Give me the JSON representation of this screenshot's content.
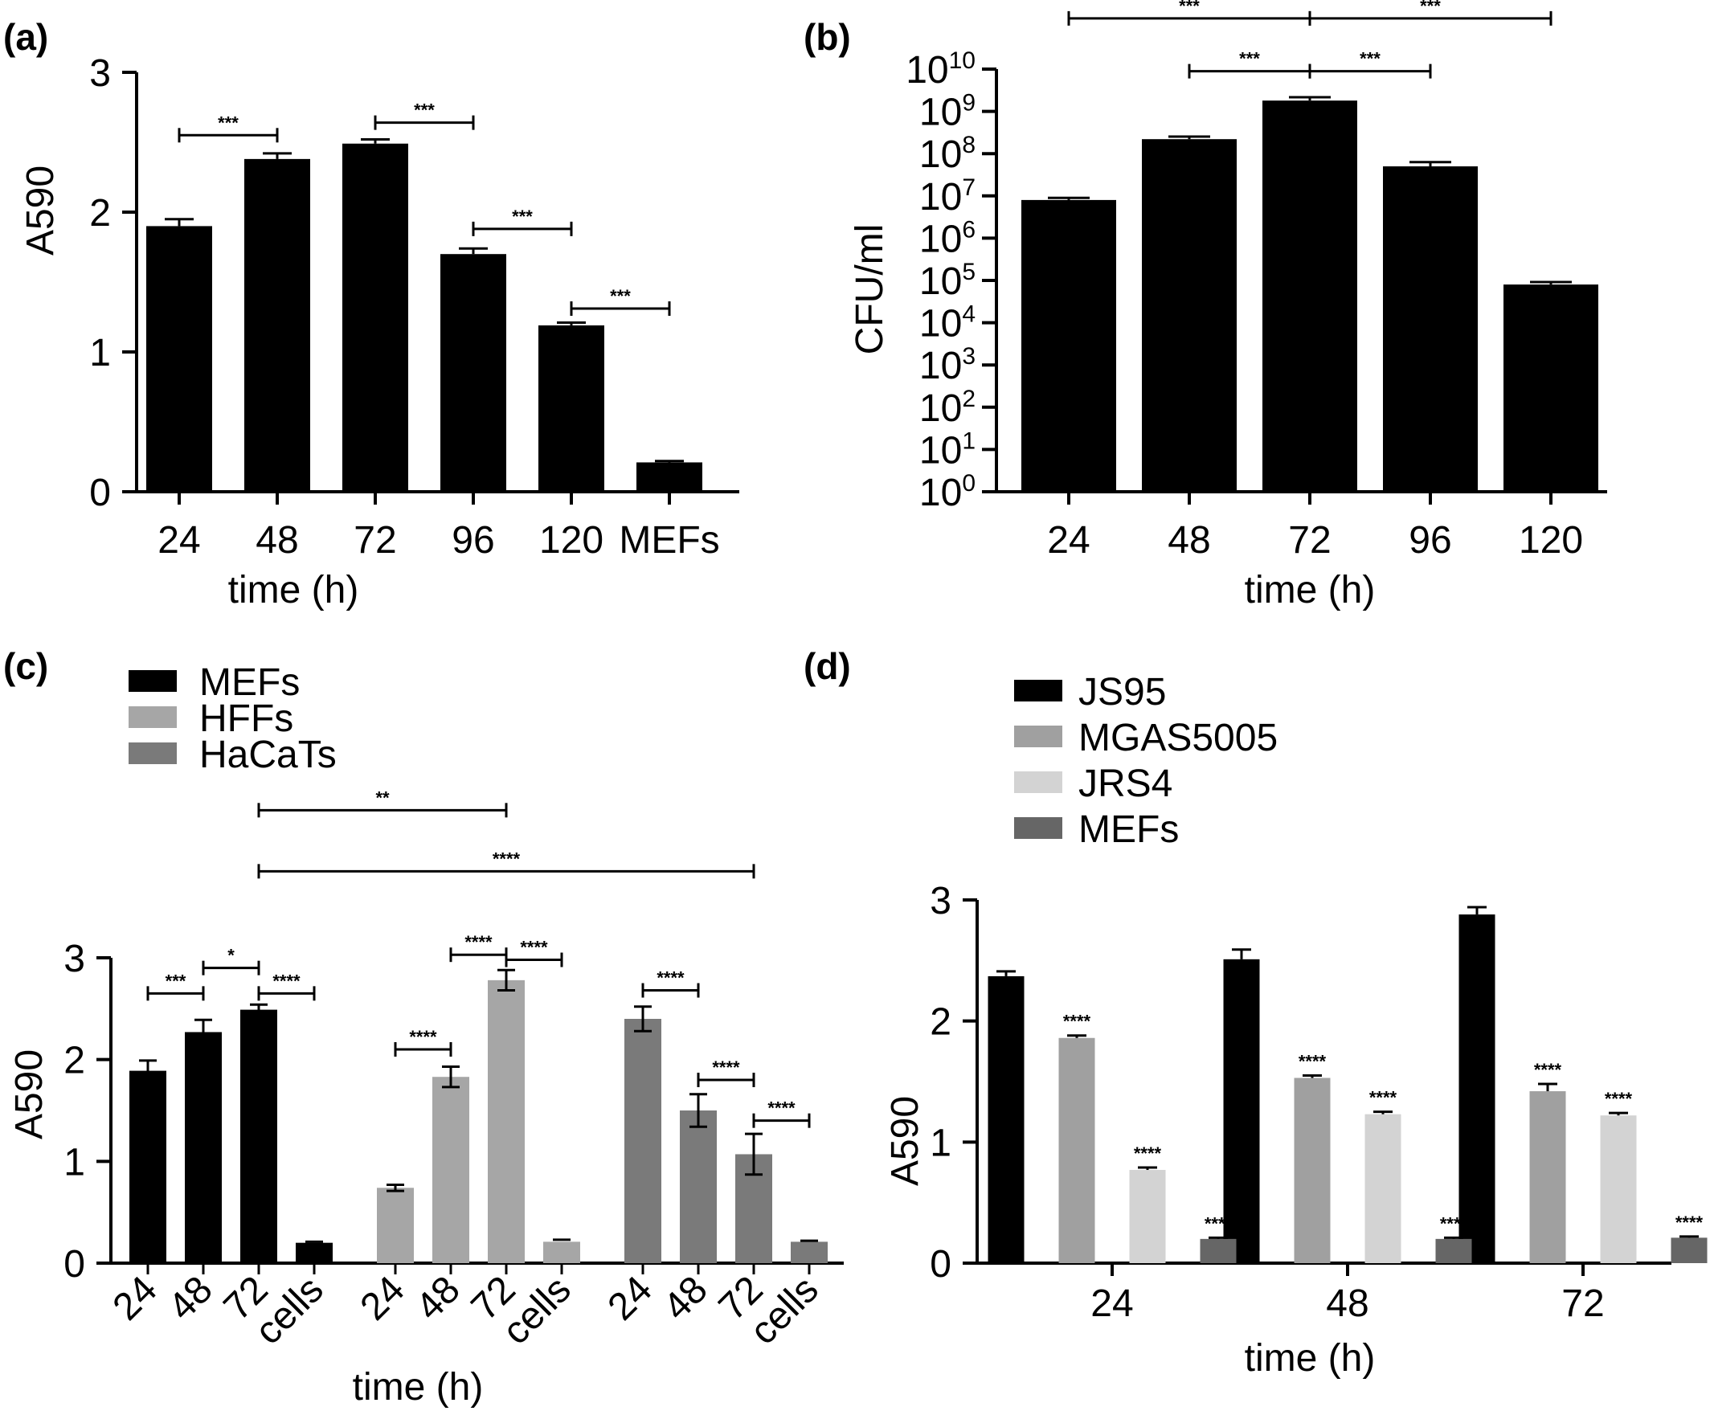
{
  "chart_data": [
    {
      "panel": "(a)",
      "type": "bar",
      "categories": [
        "24",
        "48",
        "72",
        "96",
        "120",
        "MEFs"
      ],
      "values": [
        1.9,
        2.38,
        2.49,
        1.7,
        1.19,
        0.21
      ],
      "errors": [
        0.05,
        0.04,
        0.03,
        0.04,
        0.02,
        0.01
      ],
      "xlabel": "time (h)",
      "ylabel": "A590",
      "ylim": [
        0,
        3
      ],
      "yticks": [
        0,
        1,
        2,
        3
      ],
      "color": "#000000",
      "significance": [
        {
          "from": 0,
          "to": 1,
          "label": "***",
          "y": 2.55
        },
        {
          "from": 2,
          "to": 3,
          "label": "***",
          "y": 2.64
        },
        {
          "from": 3,
          "to": 4,
          "label": "***",
          "y": 1.88
        },
        {
          "from": 4,
          "to": 5,
          "label": "***",
          "y": 1.31
        }
      ]
    },
    {
      "panel": "(b)",
      "type": "bar",
      "scale": "log",
      "categories": [
        "24",
        "48",
        "72",
        "96",
        "120"
      ],
      "values": [
        8000000,
        220000000,
        1800000000,
        50000000,
        80000
      ],
      "errors_log10": [
        0.05,
        0.06,
        0.08,
        0.1,
        0.06
      ],
      "xlabel": "time (h)",
      "ylabel": "CFU/ml",
      "ylim_log10": [
        0,
        10
      ],
      "ytick_base": "10",
      "ytick_exponents": [
        "0",
        "1",
        "2",
        "3",
        "4",
        "5",
        "6",
        "7",
        "8",
        "9",
        "10"
      ],
      "color": "#000000",
      "significance": [
        {
          "from": 0,
          "to": 2,
          "label": "***",
          "y_log10": 11.2
        },
        {
          "from": 2,
          "to": 4,
          "label": "***",
          "y_log10": 11.2
        },
        {
          "from": 1,
          "to": 2,
          "label": "***",
          "y_log10": 9.95
        },
        {
          "from": 2,
          "to": 3,
          "label": "***",
          "y_log10": 9.95
        }
      ]
    },
    {
      "panel": "(c)",
      "type": "bar",
      "categories": [
        "24",
        "48",
        "72",
        "cells"
      ],
      "series": [
        {
          "name": "MEFs",
          "color": "#000000",
          "values": [
            1.89,
            2.27,
            2.49,
            0.2
          ],
          "errors": [
            0.1,
            0.12,
            0.05,
            0.01
          ]
        },
        {
          "name": "HFFs",
          "color": "#a6a6a6",
          "values": [
            0.74,
            1.83,
            2.78,
            0.21
          ],
          "errors": [
            0.03,
            0.1,
            0.1,
            0.02
          ]
        },
        {
          "name": "HaCaTs",
          "color": "#7a7a7a",
          "values": [
            2.4,
            1.5,
            1.07,
            0.21
          ],
          "errors": [
            0.12,
            0.16,
            0.2,
            0.01
          ]
        }
      ],
      "xlabel": "time (h)",
      "ylabel": "A590",
      "ylim": [
        0,
        3
      ],
      "yticks": [
        0,
        1,
        2,
        3
      ],
      "significance": [
        {
          "from": [
            0,
            0
          ],
          "to": [
            0,
            1
          ],
          "label": "***",
          "y": 2.65
        },
        {
          "from": [
            0,
            1
          ],
          "to": [
            0,
            2
          ],
          "label": "*",
          "y": 2.9
        },
        {
          "from": [
            0,
            2
          ],
          "to": [
            0,
            3
          ],
          "label": "****",
          "y": 2.65
        },
        {
          "from": [
            1,
            0
          ],
          "to": [
            1,
            1
          ],
          "label": "****",
          "y": 2.1
        },
        {
          "from": [
            1,
            1
          ],
          "to": [
            1,
            2
          ],
          "label": "****",
          "y": 3.03
        },
        {
          "from": [
            1,
            2
          ],
          "to": [
            1,
            3
          ],
          "label": "****",
          "y": 2.98
        },
        {
          "from": [
            2,
            0
          ],
          "to": [
            2,
            1
          ],
          "label": "****",
          "y": 2.68
        },
        {
          "from": [
            2,
            1
          ],
          "to": [
            2,
            2
          ],
          "label": "****",
          "y": 1.8
        },
        {
          "from": [
            2,
            2
          ],
          "to": [
            2,
            3
          ],
          "label": "****",
          "y": 1.4
        },
        {
          "from": [
            0,
            2
          ],
          "to": [
            1,
            2
          ],
          "label": "**",
          "y": 4.45
        },
        {
          "from": [
            0,
            2
          ],
          "to": [
            2,
            2
          ],
          "label": "****",
          "y": 3.85
        }
      ]
    },
    {
      "panel": "(d)",
      "type": "bar",
      "categories": [
        "24",
        "48",
        "72"
      ],
      "series": [
        {
          "name": "JS95",
          "color": "#000000",
          "values": [
            2.37,
            2.51,
            2.88
          ],
          "errors": [
            0.04,
            0.08,
            0.06
          ],
          "marks": [
            "",
            "",
            ""
          ]
        },
        {
          "name": "MGAS5005",
          "color": "#a0a0a0",
          "values": [
            1.86,
            1.53,
            1.42
          ],
          "errors": [
            0.02,
            0.02,
            0.06
          ],
          "marks": [
            "****",
            "****",
            "****"
          ]
        },
        {
          "name": "JRS4",
          "color": "#d3d3d3",
          "values": [
            0.77,
            1.23,
            1.22
          ],
          "errors": [
            0.02,
            0.02,
            0.02
          ],
          "marks": [
            "****",
            "****",
            "****"
          ]
        },
        {
          "name": "MEFs",
          "color": "#666666",
          "values": [
            0.2,
            0.2,
            0.21
          ],
          "errors": [
            0.01,
            0.01,
            0.01
          ],
          "marks": [
            "****",
            "****",
            "****"
          ]
        }
      ],
      "xlabel": "time (h)",
      "ylabel": "A590",
      "ylim": [
        0,
        3
      ],
      "yticks": [
        0,
        1,
        2,
        3
      ]
    }
  ]
}
